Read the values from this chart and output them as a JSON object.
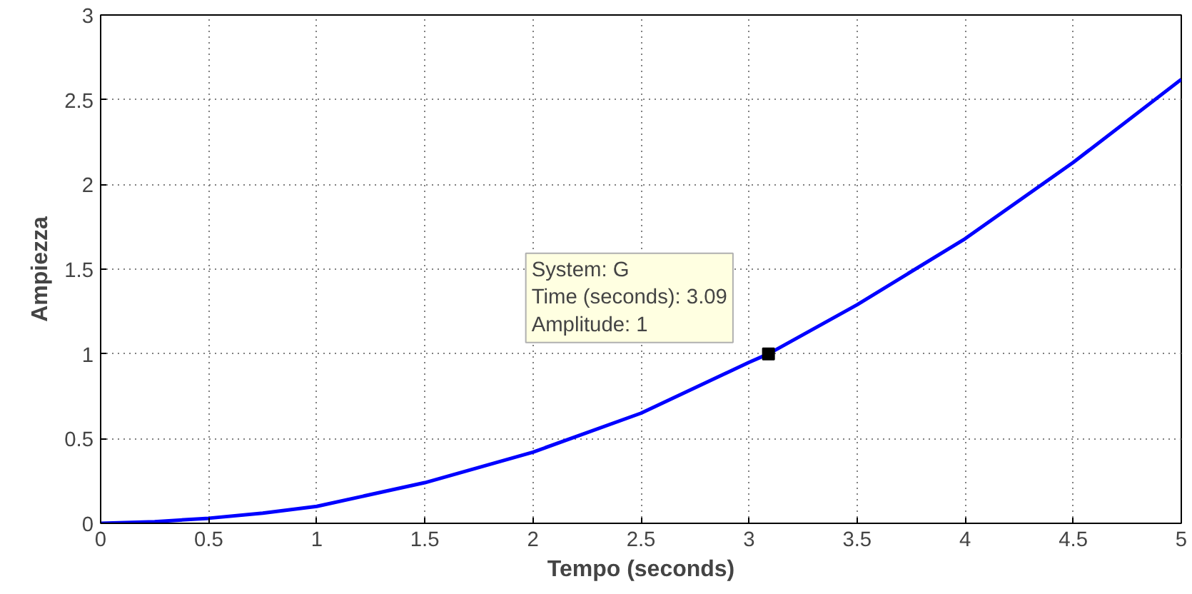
{
  "chart_data": {
    "type": "line",
    "xlabel": "Tempo (seconds)",
    "ylabel": "Ampiezza",
    "x": [
      0,
      0.25,
      0.5,
      0.75,
      1,
      1.5,
      2,
      2.5,
      3,
      3.09,
      3.5,
      4,
      4.5,
      5
    ],
    "series": [
      {
        "color": "#0000ff",
        "values": [
          0,
          0.01,
          0.03,
          0.06,
          0.1,
          0.24,
          0.42,
          0.65,
          0.95,
          1,
          1.29,
          1.68,
          2.13,
          2.62
        ]
      }
    ],
    "xlim": [
      0,
      5
    ],
    "ylim": [
      0,
      3
    ],
    "xticks": [
      0,
      0.5,
      1,
      1.5,
      2,
      2.5,
      3,
      3.5,
      4,
      4.5,
      5
    ],
    "yticks": [
      0,
      0.5,
      1,
      1.5,
      2,
      2.5,
      3
    ],
    "grid": true,
    "line_style": "solid",
    "marker": "none",
    "annotations": [
      {
        "text": "System: G\nTime (seconds): 3.09\nAmplitude: 1",
        "x": 3.09,
        "y": 1
      }
    ]
  }
}
